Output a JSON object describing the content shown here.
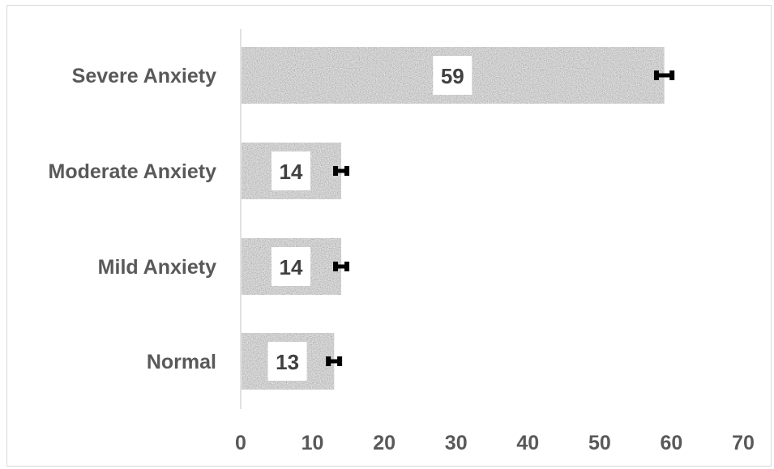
{
  "chart_data": {
    "type": "bar",
    "orientation": "horizontal",
    "title": "",
    "xlabel": "",
    "ylabel": "",
    "categories": [
      "Severe Anxiety",
      "Moderate Anxiety",
      "Mild Anxiety",
      "Normal"
    ],
    "values": [
      59,
      14,
      14,
      13
    ],
    "data_labels": [
      "59",
      "14",
      "14",
      "13"
    ],
    "error_bars": [
      1.2,
      0.9,
      0.9,
      0.9
    ],
    "xlim": [
      0,
      70
    ],
    "xticks": [
      "0",
      "10",
      "20",
      "30",
      "40",
      "50",
      "60",
      "70"
    ],
    "grid": false,
    "legend": "none",
    "bar_fill": "gray-speckle-texture",
    "colors": {
      "bar_base": "#a6a6a6",
      "error_bar": "#000000",
      "text": "#595959",
      "axis_line": "#d9d9d9"
    }
  }
}
